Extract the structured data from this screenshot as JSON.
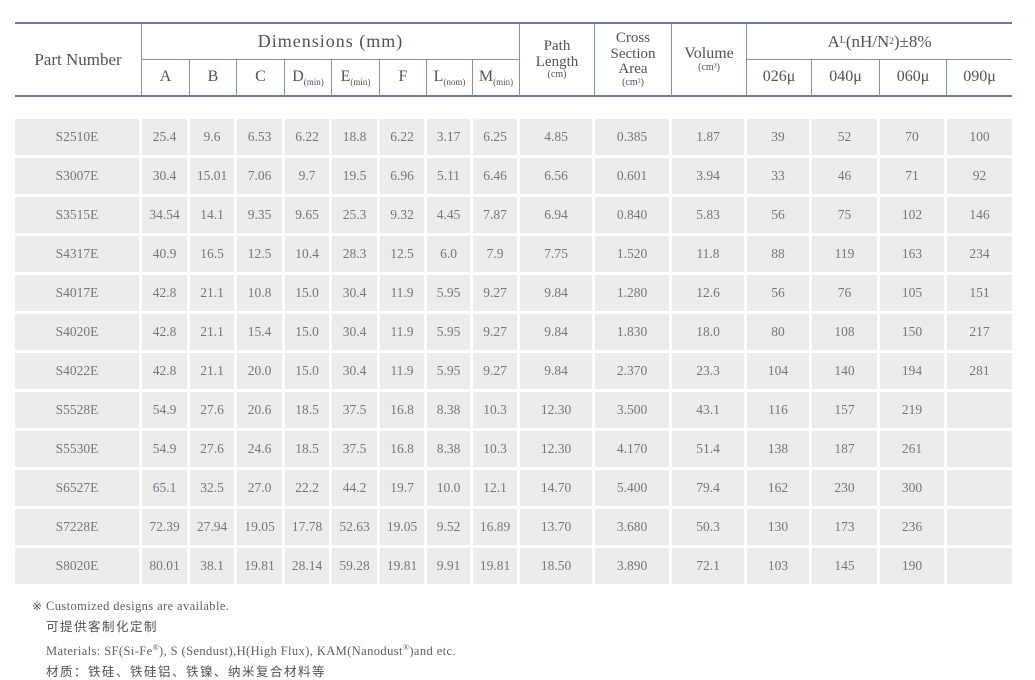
{
  "colors": {
    "rule_heavy": "#6e7b95",
    "rule_light": "#8791a4",
    "cell_bg": "#ececec",
    "cell_text": "#74777e",
    "header_text": "#4e545c",
    "page_bg": "#ffffff"
  },
  "table": {
    "header": {
      "part_number": "Part Number",
      "dimensions_label": "Dimensions (mm)",
      "dim_cols": [
        {
          "main": "A",
          "sub": ""
        },
        {
          "main": "B",
          "sub": ""
        },
        {
          "main": "C",
          "sub": ""
        },
        {
          "main": "D",
          "sub": "(min)"
        },
        {
          "main": "E",
          "sub": "(min)"
        },
        {
          "main": "F",
          "sub": ""
        },
        {
          "main": "L",
          "sub": "(nom)"
        },
        {
          "main": "M",
          "sub": "(min)"
        }
      ],
      "path_length": {
        "l1": "Path",
        "l2": "Length",
        "unit": "(cm)"
      },
      "cross_section": {
        "l1": "Cross",
        "l2": "Section",
        "l3": "Area",
        "unit": "(cm²)"
      },
      "volume": {
        "l1": "Volume",
        "unit": "(cm³)"
      },
      "al_label": {
        "a": "A",
        "sub": "L",
        "mid": "(nH/N",
        "sup": "2",
        "end": ")±8%"
      },
      "al_cols": [
        "026μ",
        "040μ",
        "060μ",
        "090μ"
      ]
    },
    "rows": [
      {
        "part": "S2510E",
        "values": [
          "25.4",
          "9.6",
          "6.53",
          "6.22",
          "18.8",
          "6.22",
          "3.17",
          "6.25",
          "4.85",
          "0.385",
          "1.87",
          "39",
          "52",
          "70",
          "100"
        ]
      },
      {
        "part": "S3007E",
        "values": [
          "30.4",
          "15.01",
          "7.06",
          "9.7",
          "19.5",
          "6.96",
          "5.11",
          "6.46",
          "6.56",
          "0.601",
          "3.94",
          "33",
          "46",
          "71",
          "92"
        ]
      },
      {
        "part": "S3515E",
        "values": [
          "34.54",
          "14.1",
          "9.35",
          "9.65",
          "25.3",
          "9.32",
          "4.45",
          "7.87",
          "6.94",
          "0.840",
          "5.83",
          "56",
          "75",
          "102",
          "146"
        ]
      },
      {
        "part": "S4317E",
        "values": [
          "40.9",
          "16.5",
          "12.5",
          "10.4",
          "28.3",
          "12.5",
          "6.0",
          "7.9",
          "7.75",
          "1.520",
          "11.8",
          "88",
          "119",
          "163",
          "234"
        ]
      },
      {
        "part": "S4017E",
        "values": [
          "42.8",
          "21.1",
          "10.8",
          "15.0",
          "30.4",
          "11.9",
          "5.95",
          "9.27",
          "9.84",
          "1.280",
          "12.6",
          "56",
          "76",
          "105",
          "151"
        ]
      },
      {
        "part": "S4020E",
        "values": [
          "42.8",
          "21.1",
          "15.4",
          "15.0",
          "30.4",
          "11.9",
          "5.95",
          "9.27",
          "9.84",
          "1.830",
          "18.0",
          "80",
          "108",
          "150",
          "217"
        ]
      },
      {
        "part": "S4022E",
        "values": [
          "42.8",
          "21.1",
          "20.0",
          "15.0",
          "30.4",
          "11.9",
          "5.95",
          "9.27",
          "9.84",
          "2.370",
          "23.3",
          "104",
          "140",
          "194",
          "281"
        ]
      },
      {
        "part": "S5528E",
        "values": [
          "54.9",
          "27.6",
          "20.6",
          "18.5",
          "37.5",
          "16.8",
          "8.38",
          "10.3",
          "12.30",
          "3.500",
          "43.1",
          "116",
          "157",
          "219",
          ""
        ]
      },
      {
        "part": "S5530E",
        "values": [
          "54.9",
          "27.6",
          "24.6",
          "18.5",
          "37.5",
          "16.8",
          "8.38",
          "10.3",
          "12.30",
          "4.170",
          "51.4",
          "138",
          "187",
          "261",
          ""
        ]
      },
      {
        "part": "S6527E",
        "values": [
          "65.1",
          "32.5",
          "27.0",
          "22.2",
          "44.2",
          "19.7",
          "10.0",
          "12.1",
          "14.70",
          "5.400",
          "79.4",
          "162",
          "230",
          "300",
          ""
        ]
      },
      {
        "part": "S7228E",
        "values": [
          "72.39",
          "27.94",
          "19.05",
          "17.78",
          "52.63",
          "19.05",
          "9.52",
          "16.89",
          "13.70",
          "3.680",
          "50.3",
          "130",
          "173",
          "236",
          ""
        ]
      },
      {
        "part": "S8020E",
        "values": [
          "80.01",
          "38.1",
          "19.81",
          "28.14",
          "59.28",
          "19.81",
          "9.91",
          "19.81",
          "18.50",
          "3.890",
          "72.1",
          "103",
          "145",
          "190",
          ""
        ]
      }
    ]
  },
  "notes": {
    "marker": "※",
    "custom_en": "Customized designs are available.",
    "custom_zh": "可提供客制化定制",
    "materials_parts": [
      "Materials: SF(Si-Fe",
      "®",
      "), S (Sendust),H(High Flux), KAM(Nanodust",
      "®",
      ")and etc."
    ],
    "materials_zh": "材质：铁硅、铁硅铝、铁镍、纳米复合材料等"
  }
}
